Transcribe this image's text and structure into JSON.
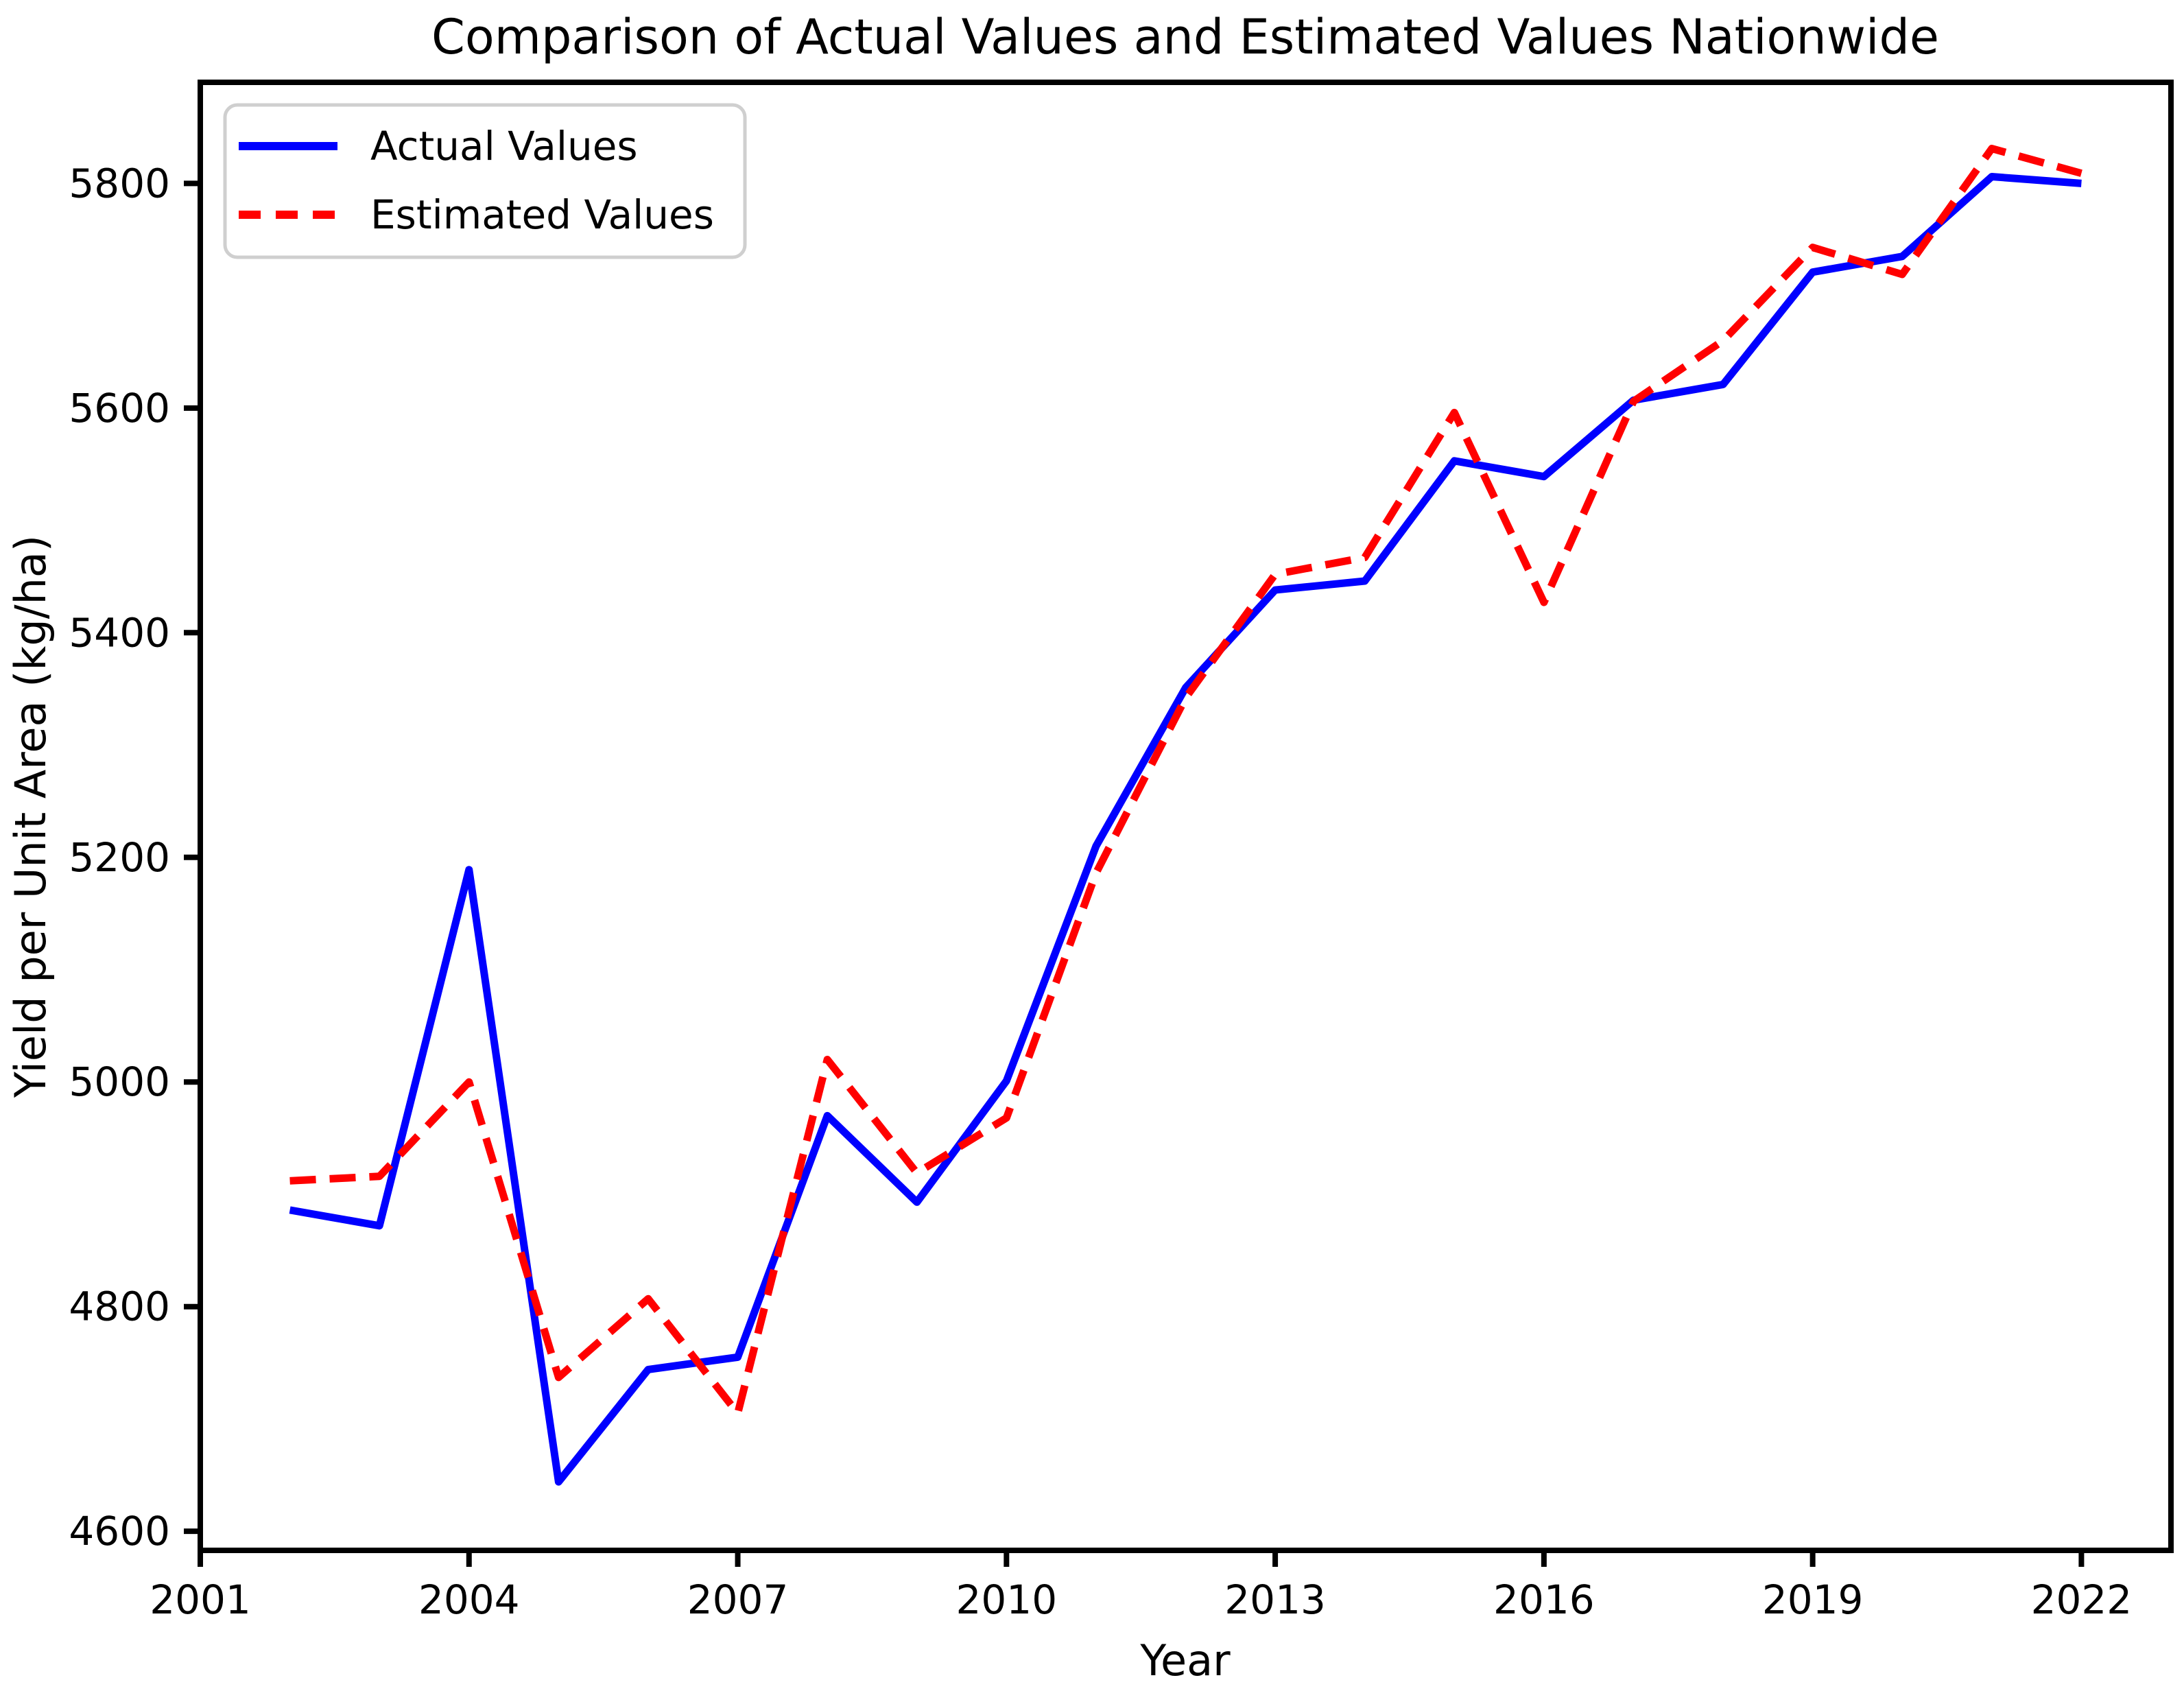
{
  "page": {
    "background": "#ffffff"
  },
  "chart_data": {
    "type": "line",
    "title": "Comparison of Actual Values and Estimated Values Nationwide",
    "xlabel": "Year",
    "ylabel": "Yield per Unit Area (kg/ha)",
    "x": [
      2002,
      2003,
      2004,
      2005,
      2006,
      2007,
      2008,
      2009,
      2010,
      2011,
      2012,
      2013,
      2014,
      2015,
      2016,
      2017,
      2018,
      2019,
      2020,
      2021,
      2022
    ],
    "series": [
      {
        "name": "Actual Values",
        "color": "#0000ff",
        "line_style": "solid",
        "values": [
          4886,
          4872,
          5189,
          4644,
          4744,
          4755,
          4970,
          4893,
          5001,
          5210,
          5351,
          5438,
          5446,
          5553,
          5539,
          5607,
          5621,
          5721,
          5735,
          5806,
          5800
        ]
      },
      {
        "name": "Estimated Values",
        "color": "#ff0000",
        "line_style": "dashed",
        "values": [
          4912,
          4916,
          5000,
          4737,
          4807,
          4705,
          5020,
          4919,
          4968,
          5186,
          5342,
          5452,
          5467,
          5596,
          5427,
          5606,
          5660,
          5743,
          5719,
          5831,
          5809
        ]
      }
    ],
    "xticks": [
      2001,
      2004,
      2007,
      2010,
      2013,
      2016,
      2019,
      2022
    ],
    "yticks": [
      4600,
      4800,
      5000,
      5200,
      5400,
      5600,
      5800
    ],
    "xlim": [
      2001,
      2023
    ],
    "ylim": [
      4583,
      5890
    ],
    "grid": false,
    "legend_position": "upper-left",
    "axis_color": "#000000"
  }
}
